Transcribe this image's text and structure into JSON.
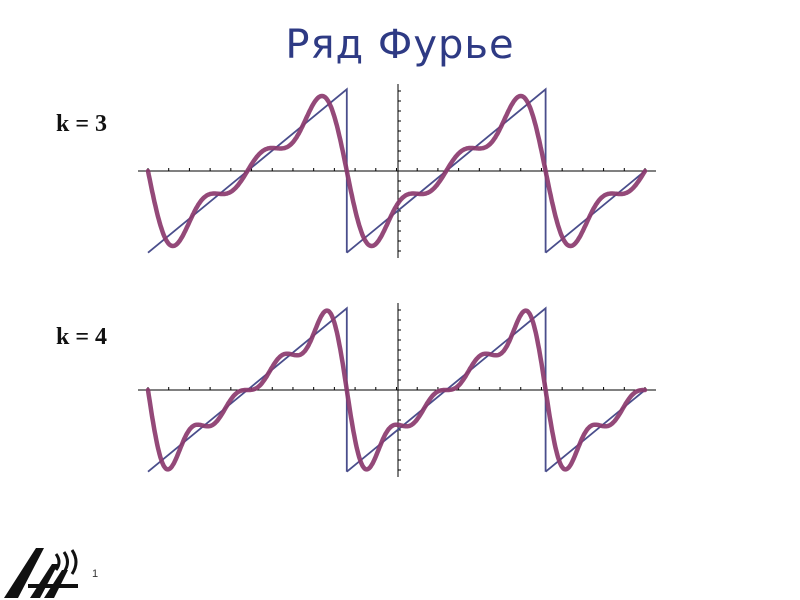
{
  "slide": {
    "title": "Ряд Фурье",
    "number": "1"
  },
  "colors": {
    "title": "#2e3a84",
    "sawtooth": "#4a4e8c",
    "fourier": "#8b3a6e",
    "axis": "#000000"
  },
  "chart_data": [
    {
      "type": "line",
      "label": "k = 3",
      "k": 3,
      "x_range": [
        -3.14159,
        12.56637
      ],
      "y_range": [
        -3.14159,
        3.14159
      ],
      "x_ticks": 3,
      "y_ticks": 8,
      "series": [
        {
          "function": "sawtooth",
          "period": 6.28318,
          "amplitude": 3.14159
        },
        {
          "function": "fourier_partial_sum",
          "formula": "2·Σ(-1)^(n+1)·sin(nx)/n, n=1..k"
        }
      ]
    },
    {
      "type": "line",
      "label": "k = 4",
      "k": 4,
      "x_range": [
        -3.14159,
        12.56637
      ],
      "y_range": [
        -3.14159,
        3.14159
      ],
      "x_ticks": 3,
      "y_ticks": 8,
      "series": [
        {
          "function": "sawtooth",
          "period": 6.28318,
          "amplitude": 3.14159
        },
        {
          "function": "fourier_partial_sum",
          "formula": "2·Σ(-1)^(n+1)·sin(nx)/n, n=1..k"
        }
      ]
    }
  ]
}
